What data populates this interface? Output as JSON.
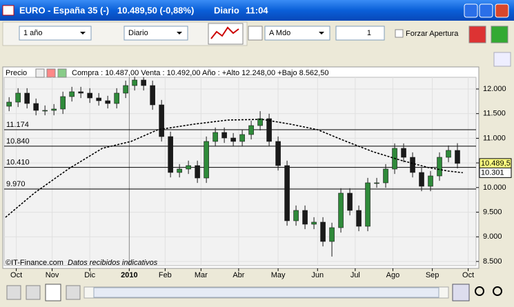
{
  "window": {
    "title": "EURO - España 35 (-)",
    "price": "10.489,50 (-0,88%)",
    "period": "Diario",
    "time": "11:04"
  },
  "toolbar": {
    "range": "1 año",
    "interval": "Diario",
    "mode": "A Mdo",
    "spinner": "1",
    "checkbox": "Forzar Apertura"
  },
  "panel": {
    "label": "Precio",
    "info": "Compra : 10.487,00 Venta : 10.492,00   Año : +Alto 12.248,00 +Bajo 8.562,50",
    "source": "©IT-Finance.com",
    "note": "Datos recibidos indicativos"
  },
  "chart_data": {
    "type": "candlestick",
    "x": [
      2,
      7,
      12,
      17,
      22,
      27,
      32,
      37,
      42,
      47,
      52,
      57,
      62,
      67,
      72,
      77,
      82,
      87,
      92,
      97,
      102,
      107,
      112,
      117,
      122,
      127,
      132,
      137,
      142,
      147,
      152,
      157,
      162,
      167,
      172,
      177,
      182,
      187,
      192,
      197,
      202,
      207,
      212,
      217,
      222,
      227,
      232,
      237,
      242,
      247,
      252
    ],
    "open": [
      11650,
      11734,
      11916,
      11706,
      11566,
      11566,
      11594,
      11846,
      11944,
      11916,
      11818,
      11762,
      11706,
      11916,
      12070,
      12182,
      12070,
      11678,
      11034,
      10306,
      10376,
      10446,
      10194,
      10936,
      11118,
      11006,
      10936,
      11076,
      11258,
      11398,
      10936,
      10446,
      9326,
      9536,
      9256,
      9298,
      8906,
      9186,
      9886,
      9536,
      9214,
      10096,
      10096,
      10376,
      10796,
      10614,
      10306,
      10026,
      10236,
      10614,
      10754
    ],
    "high": [
      11834,
      12016,
      12016,
      11806,
      11666,
      11694,
      11946,
      12044,
      12044,
      12016,
      11918,
      11862,
      12016,
      12170,
      12248,
      12240,
      12170,
      11778,
      11134,
      10476,
      10546,
      10546,
      11036,
      11218,
      11218,
      11106,
      11176,
      11358,
      11550,
      11498,
      11036,
      10546,
      9636,
      9636,
      9398,
      9398,
      9286,
      9986,
      9986,
      9636,
      10196,
      10196,
      10476,
      10896,
      10896,
      10714,
      10406,
      10336,
      10714,
      10854,
      10900
    ],
    "low": [
      11550,
      11634,
      11606,
      11466,
      11466,
      11466,
      11494,
      11746,
      11816,
      11718,
      11662,
      11606,
      11606,
      11816,
      11970,
      11970,
      11578,
      10934,
      10206,
      10206,
      10276,
      10094,
      10094,
      10836,
      10906,
      10836,
      10836,
      10976,
      11158,
      10836,
      10346,
      9226,
      9226,
      9156,
      9156,
      8806,
      8600,
      9086,
      9436,
      9114,
      9114,
      9996,
      9996,
      10276,
      10514,
      10206,
      9926,
      9926,
      10136,
      10514,
      10390
    ],
    "close": [
      11734,
      11916,
      11706,
      11566,
      11566,
      11594,
      11846,
      11944,
      11916,
      11818,
      11762,
      11706,
      11916,
      12070,
      12182,
      12070,
      11678,
      11034,
      10306,
      10376,
      10446,
      10194,
      10936,
      11118,
      11006,
      10936,
      11076,
      11258,
      11398,
      10936,
      10446,
      9326,
      9536,
      9256,
      9298,
      8906,
      9186,
      9886,
      9536,
      9214,
      10096,
      10096,
      10376,
      10796,
      10614,
      10306,
      10026,
      10236,
      10614,
      10754,
      10490
    ],
    "up_color": "#2f8a3a",
    "down_color": "#1a1a1a",
    "moving_average": {
      "x": [
        0,
        16,
        35,
        54,
        70,
        85,
        105,
        124,
        143,
        159,
        174,
        190,
        205,
        220,
        236,
        247,
        255
      ],
      "values": [
        9396,
        9886,
        10376,
        10796,
        10936,
        11174,
        11286,
        11370,
        11384,
        11286,
        11174,
        10936,
        10726,
        10558,
        10404,
        10334,
        10301
      ],
      "color": "#000000"
    },
    "levels": [
      {
        "value": 11174,
        "label": "11.174"
      },
      {
        "value": 10840,
        "label": "10.840"
      },
      {
        "value": 10410,
        "label": "10.410"
      },
      {
        "value": 9970,
        "label": "9.970"
      }
    ],
    "price_tags": [
      {
        "value": 10489.5,
        "label": "10.489,5",
        "color": "#ffff80"
      },
      {
        "value": 10301,
        "label": "10.301",
        "color": "#ffffff"
      }
    ],
    "xlim": [
      0,
      262
    ],
    "xticks": [
      {
        "value": 6,
        "label": "Oct"
      },
      {
        "value": 26,
        "label": "Nov"
      },
      {
        "value": 47,
        "label": "Dic"
      },
      {
        "value": 69,
        "label": "2010"
      },
      {
        "value": 89,
        "label": "Feb"
      },
      {
        "value": 109,
        "label": "Mar"
      },
      {
        "value": 130,
        "label": "Abr"
      },
      {
        "value": 152,
        "label": "May"
      },
      {
        "value": 174,
        "label": "Jun"
      },
      {
        "value": 195,
        "label": "Jul"
      },
      {
        "value": 216,
        "label": "Ago"
      },
      {
        "value": 238,
        "label": "Sep"
      },
      {
        "value": 258,
        "label": "Oct"
      }
    ],
    "ylim": [
      8416,
      12238
    ],
    "yticks": [
      {
        "value": 8500,
        "label": "8.500"
      },
      {
        "value": 9000,
        "label": "9.000"
      },
      {
        "value": 9500,
        "label": "9.500"
      },
      {
        "value": 10000,
        "label": "10.000"
      },
      {
        "value": 10500,
        "label": "10.500"
      },
      {
        "value": 11000,
        "label": "11.000"
      },
      {
        "value": 11500,
        "label": "11.500"
      },
      {
        "value": 12000,
        "label": "12.000"
      }
    ],
    "grid": true
  }
}
